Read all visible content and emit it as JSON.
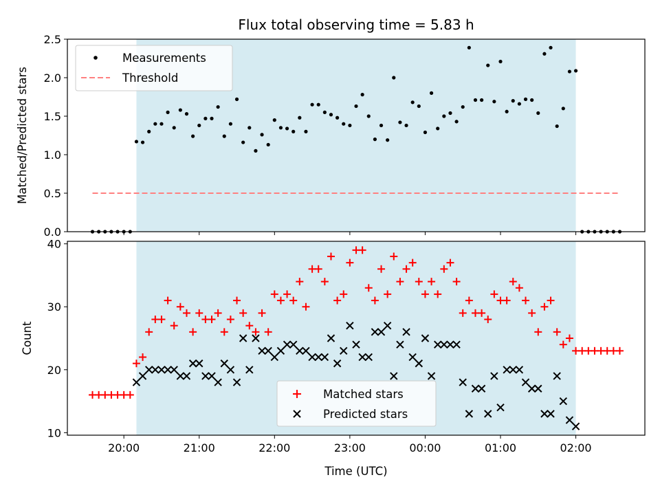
{
  "chart_data": [
    {
      "type": "scatter",
      "title": "Flux total observing time = 5.83 h",
      "xlabel": "",
      "ylabel": "Matched/Predicted stars",
      "ylim": [
        0,
        2.5
      ],
      "xlim": [
        "19:15",
        "02:55"
      ],
      "yticks": [
        "0.0",
        "0.5",
        "1.0",
        "1.5",
        "2.0",
        "2.5"
      ],
      "grid": false,
      "legend_position": "upper-left",
      "shaded_span": [
        "20:10",
        "02:00"
      ],
      "series": [
        {
          "name": "Measurements",
          "kind": "points",
          "color": "#000000",
          "x": [
            "19:35",
            "19:40",
            "19:45",
            "19:50",
            "19:55",
            "20:00",
            "20:05",
            "20:10",
            "20:15",
            "20:20",
            "20:25",
            "20:30",
            "20:35",
            "20:40",
            "20:45",
            "20:50",
            "20:55",
            "21:00",
            "21:05",
            "21:10",
            "21:15",
            "21:20",
            "21:25",
            "21:30",
            "21:35",
            "21:40",
            "21:45",
            "21:50",
            "21:55",
            "22:00",
            "22:05",
            "22:10",
            "22:15",
            "22:20",
            "22:25",
            "22:30",
            "22:35",
            "22:40",
            "22:45",
            "22:50",
            "22:55",
            "23:00",
            "23:05",
            "23:10",
            "23:15",
            "23:20",
            "23:25",
            "23:30",
            "23:35",
            "23:40",
            "23:45",
            "23:50",
            "23:55",
            "00:00",
            "00:05",
            "00:10",
            "00:15",
            "00:20",
            "00:25",
            "00:30",
            "00:35",
            "00:40",
            "00:45",
            "00:50",
            "00:55",
            "01:00",
            "01:05",
            "01:10",
            "01:15",
            "01:20",
            "01:25",
            "01:30",
            "01:35",
            "01:40",
            "01:45",
            "01:50",
            "01:55",
            "02:00",
            "02:05",
            "02:10",
            "02:15",
            "02:20",
            "02:25",
            "02:30",
            "02:35"
          ],
          "y": [
            0,
            0,
            0,
            0,
            0,
            0,
            0,
            1.17,
            1.16,
            1.3,
            1.4,
            1.4,
            1.55,
            1.35,
            1.58,
            1.53,
            1.24,
            1.38,
            1.47,
            1.47,
            1.62,
            1.24,
            1.4,
            1.72,
            1.16,
            1.35,
            1.05,
            1.26,
            1.13,
            1.45,
            1.35,
            1.34,
            1.3,
            1.48,
            1.3,
            1.65,
            1.65,
            1.55,
            1.52,
            1.48,
            1.4,
            1.38,
            1.63,
            1.78,
            1.5,
            1.2,
            1.38,
            1.19,
            2.0,
            1.42,
            1.38,
            1.68,
            1.63,
            1.29,
            1.8,
            1.34,
            1.5,
            1.54,
            1.43,
            1.62,
            2.39,
            1.71,
            1.71,
            2.16,
            1.69,
            2.21,
            1.56,
            1.7,
            1.66,
            1.72,
            1.71,
            1.54,
            2.31,
            2.39,
            1.37,
            1.6,
            2.08,
            2.09,
            0,
            0,
            0,
            0,
            0,
            0,
            0
          ]
        },
        {
          "name": "Threshold",
          "kind": "dashed-line",
          "color": "#ff8080",
          "x": [
            "19:35",
            "02:35"
          ],
          "y": [
            0.5,
            0.5
          ]
        }
      ]
    },
    {
      "type": "scatter",
      "title": "",
      "xlabel": "Time (UTC)",
      "ylabel": "Count",
      "ylim": [
        9.6,
        40.4
      ],
      "xlim": [
        "19:15",
        "02:55"
      ],
      "yticks": [
        "10",
        "20",
        "30",
        "40"
      ],
      "xticks": [
        "20:00",
        "21:00",
        "22:00",
        "23:00",
        "00:00",
        "01:00",
        "02:00"
      ],
      "grid": false,
      "legend_position": "lower-center",
      "shaded_span": [
        "20:10",
        "02:00"
      ],
      "series": [
        {
          "name": "Matched stars",
          "marker": "plus",
          "color": "#ff0000",
          "x": [
            "19:35",
            "19:40",
            "19:45",
            "19:50",
            "19:55",
            "20:00",
            "20:05",
            "20:10",
            "20:15",
            "20:20",
            "20:25",
            "20:30",
            "20:35",
            "20:40",
            "20:45",
            "20:50",
            "20:55",
            "21:00",
            "21:05",
            "21:10",
            "21:15",
            "21:20",
            "21:25",
            "21:30",
            "21:35",
            "21:40",
            "21:45",
            "21:50",
            "21:55",
            "22:00",
            "22:05",
            "22:10",
            "22:15",
            "22:20",
            "22:25",
            "22:30",
            "22:35",
            "22:40",
            "22:45",
            "22:50",
            "22:55",
            "23:00",
            "23:05",
            "23:10",
            "23:15",
            "23:20",
            "23:25",
            "23:30",
            "23:35",
            "23:40",
            "23:45",
            "23:50",
            "23:55",
            "00:00",
            "00:05",
            "00:10",
            "00:15",
            "00:20",
            "00:25",
            "00:30",
            "00:35",
            "00:40",
            "00:45",
            "00:50",
            "00:55",
            "01:00",
            "01:05",
            "01:10",
            "01:15",
            "01:20",
            "01:25",
            "01:30",
            "01:35",
            "01:40",
            "01:45",
            "01:50",
            "01:55",
            "02:00",
            "02:05",
            "02:10",
            "02:15",
            "02:20",
            "02:25",
            "02:30",
            "02:35"
          ],
          "y": [
            16,
            16,
            16,
            16,
            16,
            16,
            16,
            21,
            22,
            26,
            28,
            28,
            31,
            27,
            30,
            29,
            26,
            29,
            28,
            28,
            29,
            26,
            28,
            31,
            29,
            27,
            26,
            29,
            26,
            32,
            31,
            32,
            31,
            34,
            30,
            36,
            36,
            34,
            38,
            31,
            32,
            37,
            39,
            39,
            33,
            31,
            36,
            32,
            38,
            34,
            36,
            37,
            34,
            32,
            34,
            32,
            36,
            37,
            34,
            29,
            31,
            29,
            29,
            28,
            32,
            31,
            31,
            34,
            33,
            31,
            29,
            26,
            30,
            31,
            26,
            24,
            25,
            23,
            23,
            23,
            23,
            23,
            23,
            23,
            23
          ]
        },
        {
          "name": "Predicted stars",
          "marker": "x",
          "color": "#000000",
          "x": [
            "20:10",
            "20:15",
            "20:20",
            "20:25",
            "20:30",
            "20:35",
            "20:40",
            "20:45",
            "20:50",
            "20:55",
            "21:00",
            "21:05",
            "21:10",
            "21:15",
            "21:20",
            "21:25",
            "21:30",
            "21:35",
            "21:40",
            "21:45",
            "21:50",
            "21:55",
            "22:00",
            "22:05",
            "22:10",
            "22:15",
            "22:20",
            "22:25",
            "22:30",
            "22:35",
            "22:40",
            "22:45",
            "22:50",
            "22:55",
            "23:00",
            "23:05",
            "23:10",
            "23:15",
            "23:20",
            "23:25",
            "23:30",
            "23:35",
            "23:40",
            "23:45",
            "23:50",
            "23:55",
            "00:00",
            "00:05",
            "00:10",
            "00:15",
            "00:20",
            "00:25",
            "00:30",
            "00:35",
            "00:40",
            "00:45",
            "00:50",
            "00:55",
            "01:00",
            "01:05",
            "01:10",
            "01:15",
            "01:20",
            "01:25",
            "01:30",
            "01:35",
            "01:40",
            "01:45",
            "01:50",
            "01:55",
            "02:00"
          ],
          "y": [
            18,
            19,
            20,
            20,
            20,
            20,
            20,
            19,
            19,
            21,
            21,
            19,
            19,
            18,
            21,
            20,
            18,
            25,
            20,
            25,
            23,
            23,
            22,
            23,
            24,
            24,
            23,
            23,
            22,
            22,
            22,
            25,
            21,
            23,
            27,
            24,
            22,
            22,
            26,
            26,
            27,
            19,
            24,
            26,
            22,
            21,
            25,
            19,
            24,
            24,
            24,
            24,
            18,
            13,
            17,
            17,
            13,
            19,
            14,
            20,
            20,
            20,
            18,
            17,
            17,
            13,
            13,
            19,
            15,
            12,
            11
          ]
        }
      ]
    }
  ],
  "shade_color": "#add8e6"
}
